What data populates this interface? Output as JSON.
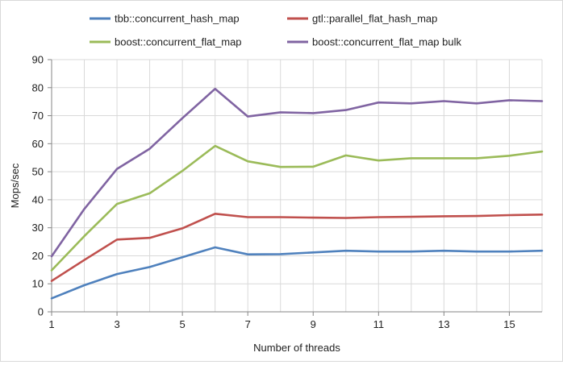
{
  "chart_data": {
    "type": "line",
    "title": "",
    "xlabel": "Number of threads",
    "ylabel": "Mops/sec",
    "xlim": [
      1,
      16
    ],
    "ylim": [
      0,
      90
    ],
    "x_ticks": [
      1,
      3,
      5,
      7,
      9,
      11,
      13,
      15
    ],
    "y_ticks": [
      0,
      10,
      20,
      30,
      40,
      50,
      60,
      70,
      80,
      90
    ],
    "grid": {
      "horizontal": true,
      "vertical": true
    },
    "legend_position": "top",
    "x": [
      1,
      2,
      3,
      4,
      5,
      6,
      7,
      8,
      9,
      10,
      11,
      12,
      13,
      14,
      15,
      16
    ],
    "series": [
      {
        "name": "tbb::concurrent_hash_map",
        "color": "#4f81bd",
        "values": [
          4.8,
          9.5,
          13.5,
          16.0,
          19.5,
          23.0,
          20.5,
          20.6,
          21.2,
          21.8,
          21.5,
          21.5,
          21.8,
          21.5,
          21.5,
          21.8
        ]
      },
      {
        "name": "gtl::parallel_flat_hash_map",
        "color": "#c0504d",
        "values": [
          11.0,
          18.5,
          25.8,
          26.4,
          29.8,
          35.0,
          33.8,
          33.8,
          33.6,
          33.5,
          33.8,
          33.9,
          34.1,
          34.2,
          34.5,
          34.7
        ]
      },
      {
        "name": "boost::concurrent_flat_map",
        "color": "#9bbb59",
        "values": [
          14.8,
          27.0,
          38.5,
          42.3,
          50.3,
          59.2,
          53.7,
          51.7,
          51.8,
          55.8,
          54.0,
          54.8,
          54.8,
          54.8,
          55.7,
          57.2
        ]
      },
      {
        "name": "boost::concurrent_flat_map bulk",
        "color": "#8064a2",
        "values": [
          19.8,
          36.7,
          51.0,
          58.2,
          69.1,
          79.6,
          69.7,
          71.2,
          70.9,
          72.0,
          74.7,
          74.4,
          75.2,
          74.4,
          75.5,
          75.2
        ]
      }
    ]
  }
}
